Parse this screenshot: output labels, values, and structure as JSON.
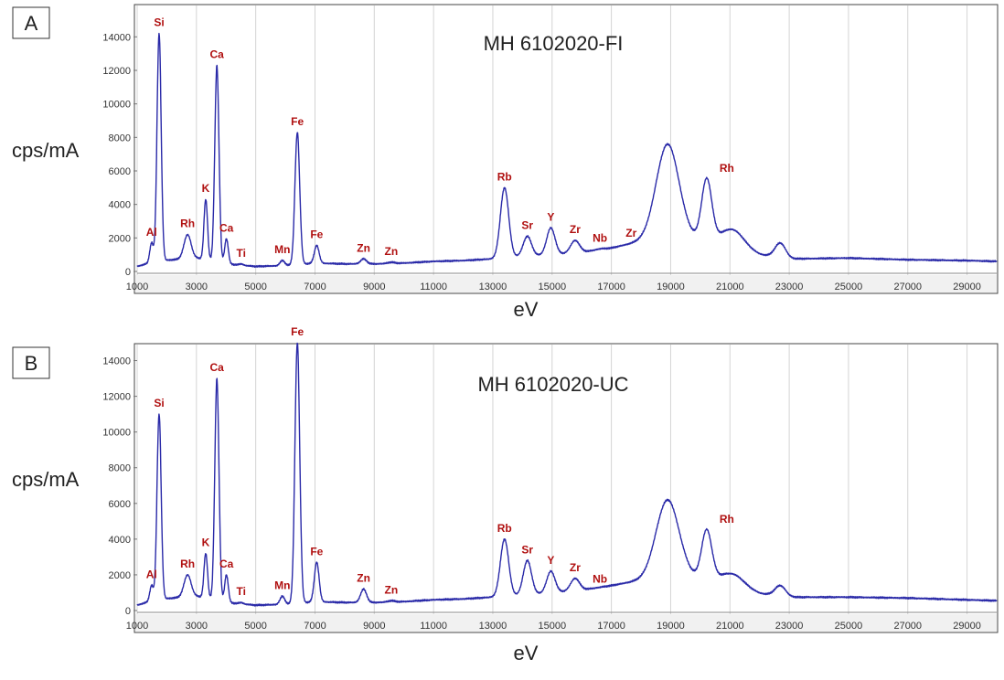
{
  "chart_data": [
    {
      "type": "line",
      "panel_label": "A",
      "title": "MH 6102020-FI",
      "xlabel": "eV",
      "ylabel": "cps/mA",
      "xlim": [
        1000,
        30000
      ],
      "ylim": [
        0,
        15000
      ],
      "x_ticks": [
        1000,
        3000,
        5000,
        7000,
        9000,
        11000,
        13000,
        15000,
        17000,
        19000,
        21000,
        23000,
        25000,
        27000,
        29000
      ],
      "y_ticks": [
        0,
        2000,
        4000,
        6000,
        8000,
        10000,
        12000,
        14000
      ],
      "grid": "vertical",
      "series_color": "#2a2aa8",
      "baseline": [
        [
          1000,
          300
        ],
        [
          1200,
          400
        ],
        [
          1600,
          600
        ],
        [
          2200,
          700
        ],
        [
          3000,
          800
        ],
        [
          4300,
          400
        ],
        [
          5000,
          300
        ],
        [
          6000,
          350
        ],
        [
          7000,
          500
        ],
        [
          8000,
          450
        ],
        [
          9000,
          450
        ],
        [
          10000,
          500
        ],
        [
          11000,
          600
        ],
        [
          12000,
          650
        ],
        [
          13000,
          750
        ],
        [
          14000,
          900
        ],
        [
          15000,
          1000
        ],
        [
          16000,
          1150
        ],
        [
          17000,
          1400
        ],
        [
          18000,
          1800
        ],
        [
          18500,
          2000
        ],
        [
          19500,
          2000
        ],
        [
          20500,
          1800
        ],
        [
          21000,
          1500
        ],
        [
          22000,
          1000
        ],
        [
          23000,
          750
        ],
        [
          25000,
          800
        ],
        [
          27000,
          700
        ],
        [
          29000,
          650
        ],
        [
          30000,
          600
        ]
      ],
      "peaks": [
        {
          "label": "Al",
          "center": 1486,
          "height": 1700,
          "width": 60
        },
        {
          "label": "Si",
          "center": 1740,
          "height": 14200,
          "width": 70
        },
        {
          "label": "Rh",
          "center": 2700,
          "height": 2200,
          "width": 120
        },
        {
          "label": "K",
          "center": 3314,
          "height": 4300,
          "width": 60
        },
        {
          "label": "Ca",
          "center": 3690,
          "height": 12300,
          "width": 70
        },
        {
          "label": "Ca",
          "center": 4013,
          "height": 1950,
          "width": 60
        },
        {
          "label": "Ti",
          "center": 4510,
          "height": 450,
          "width": 70
        },
        {
          "label": "Mn",
          "center": 5899,
          "height": 650,
          "width": 80
        },
        {
          "label": "Fe",
          "center": 6404,
          "height": 8300,
          "width": 80
        },
        {
          "label": "Fe",
          "center": 7058,
          "height": 1550,
          "width": 80
        },
        {
          "label": "Zn",
          "center": 8639,
          "height": 750,
          "width": 100
        },
        {
          "label": "Zn",
          "center": 9572,
          "height": 550,
          "width": 110
        },
        {
          "label": "Rb",
          "center": 13395,
          "height": 5000,
          "width": 140
        },
        {
          "label": "Sr",
          "center": 14165,
          "height": 2100,
          "width": 140
        },
        {
          "label": "Y",
          "center": 14958,
          "height": 2600,
          "width": 140
        },
        {
          "label": "Zr",
          "center": 15775,
          "height": 1850,
          "width": 150
        },
        {
          "label": "Nb",
          "center": 16615,
          "height": 1350,
          "width": 150
        },
        {
          "label": "Zr",
          "center": 17667,
          "height": 1650,
          "width": 160
        },
        {
          "label": "",
          "center": 18900,
          "height": 7600,
          "width": 380
        },
        {
          "label": "Rh",
          "center": 20216,
          "height": 5500,
          "width": 170
        },
        {
          "label": "",
          "center": 21100,
          "height": 2500,
          "width": 380
        },
        {
          "label": "",
          "center": 22700,
          "height": 1700,
          "width": 180
        }
      ]
    },
    {
      "type": "line",
      "panel_label": "B",
      "title": "MH 6102020-UC",
      "xlabel": "eV",
      "ylabel": "cps/mA",
      "xlim": [
        1000,
        30000
      ],
      "ylim": [
        0,
        15000
      ],
      "x_ticks": [
        1000,
        3000,
        5000,
        7000,
        9000,
        11000,
        13000,
        15000,
        17000,
        19000,
        21000,
        23000,
        25000,
        27000,
        29000
      ],
      "y_ticks": [
        0,
        2000,
        4000,
        6000,
        8000,
        10000,
        12000,
        14000
      ],
      "grid": "vertical",
      "series_color": "#2a2aa8",
      "baseline": [
        [
          1000,
          300
        ],
        [
          1200,
          400
        ],
        [
          1600,
          600
        ],
        [
          2200,
          700
        ],
        [
          3000,
          800
        ],
        [
          4300,
          400
        ],
        [
          5000,
          300
        ],
        [
          6000,
          350
        ],
        [
          7000,
          500
        ],
        [
          8000,
          450
        ],
        [
          9000,
          450
        ],
        [
          10000,
          500
        ],
        [
          11000,
          600
        ],
        [
          12000,
          650
        ],
        [
          13000,
          750
        ],
        [
          14000,
          850
        ],
        [
          15000,
          1000
        ],
        [
          16000,
          1150
        ],
        [
          17000,
          1400
        ],
        [
          18000,
          1700
        ],
        [
          18500,
          1900
        ],
        [
          19500,
          1900
        ],
        [
          20500,
          1700
        ],
        [
          21000,
          1400
        ],
        [
          22000,
          950
        ],
        [
          23000,
          750
        ],
        [
          25000,
          750
        ],
        [
          27000,
          700
        ],
        [
          29000,
          600
        ],
        [
          30000,
          550
        ]
      ],
      "peaks": [
        {
          "label": "Al",
          "center": 1486,
          "height": 1400,
          "width": 60
        },
        {
          "label": "Si",
          "center": 1740,
          "height": 11000,
          "width": 70
        },
        {
          "label": "Rh",
          "center": 2700,
          "height": 2000,
          "width": 120
        },
        {
          "label": "K",
          "center": 3314,
          "height": 3200,
          "width": 60
        },
        {
          "label": "Ca",
          "center": 3690,
          "height": 13000,
          "width": 70
        },
        {
          "label": "Ca",
          "center": 4013,
          "height": 2000,
          "width": 60
        },
        {
          "label": "Ti",
          "center": 4510,
          "height": 450,
          "width": 70
        },
        {
          "label": "Mn",
          "center": 5899,
          "height": 800,
          "width": 80
        },
        {
          "label": "Fe",
          "center": 6404,
          "height": 15000,
          "width": 80
        },
        {
          "label": "Fe",
          "center": 7058,
          "height": 2700,
          "width": 80
        },
        {
          "label": "Zn",
          "center": 8639,
          "height": 1200,
          "width": 100
        },
        {
          "label": "Zn",
          "center": 9572,
          "height": 550,
          "width": 110
        },
        {
          "label": "Rb",
          "center": 13395,
          "height": 4000,
          "width": 140
        },
        {
          "label": "Sr",
          "center": 14165,
          "height": 2800,
          "width": 140
        },
        {
          "label": "Y",
          "center": 14958,
          "height": 2200,
          "width": 140
        },
        {
          "label": "Zr",
          "center": 15775,
          "height": 1800,
          "width": 150
        },
        {
          "label": "Nb",
          "center": 16615,
          "height": 1150,
          "width": 150
        },
        {
          "label": "",
          "center": 18900,
          "height": 6200,
          "width": 380
        },
        {
          "label": "Rh",
          "center": 20216,
          "height": 4500,
          "width": 170
        },
        {
          "label": "",
          "center": 21100,
          "height": 2050,
          "width": 380
        },
        {
          "label": "",
          "center": 22700,
          "height": 1400,
          "width": 180
        }
      ]
    }
  ]
}
